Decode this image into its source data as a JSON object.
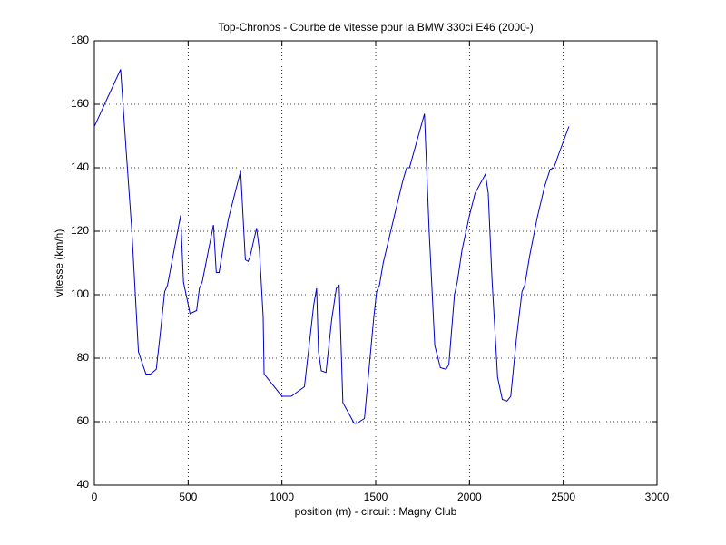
{
  "chart_data": {
    "type": "line",
    "title": "Top-Chronos - Courbe de vitesse pour la BMW 330ci E46 (2000-)",
    "x_label": "position (m) - circuit : Magny Club",
    "y_label": "vitesse (km/h)",
    "x": [
      0,
      140,
      170,
      200,
      235,
      275,
      300,
      330,
      350,
      375,
      390,
      460,
      475,
      500,
      510,
      545,
      560,
      575,
      635,
      650,
      665,
      690,
      715,
      780,
      805,
      820,
      830,
      865,
      880,
      900,
      905,
      1000,
      1050,
      1120,
      1170,
      1185,
      1195,
      1210,
      1235,
      1265,
      1290,
      1305,
      1325,
      1385,
      1400,
      1440,
      1490,
      1505,
      1520,
      1540,
      1600,
      1645,
      1665,
      1680,
      1760,
      1785,
      1815,
      1845,
      1875,
      1890,
      1920,
      1935,
      1960,
      2000,
      2030,
      2085,
      2100,
      2120,
      2150,
      2175,
      2200,
      2220,
      2250,
      2280,
      2295,
      2320,
      2360,
      2400,
      2430,
      2450,
      2480,
      2530
    ],
    "series": [
      {
        "name": "vitesse",
        "color": "#0000cc",
        "values": [
          153,
          171,
          145,
          120,
          82,
          75,
          75,
          76.5,
          87,
          101,
          103,
          125,
          104,
          97,
          94,
          95,
          102,
          104,
          122,
          107,
          107,
          116,
          124,
          139,
          111,
          110.5,
          112,
          121,
          114,
          93,
          75,
          68,
          68,
          71,
          97,
          102,
          82,
          76,
          75.5,
          92,
          102,
          103,
          66,
          59.5,
          59.5,
          61,
          93,
          101,
          103,
          110,
          125,
          136,
          140,
          140,
          157,
          120,
          84,
          77,
          76.5,
          78,
          100,
          104,
          114,
          125,
          132,
          138,
          132,
          105,
          74,
          67,
          66.5,
          68,
          86,
          101,
          103,
          112,
          124,
          134,
          139.5,
          140,
          145,
          153
        ]
      }
    ],
    "xlim": [
      0,
      3000
    ],
    "ylim": [
      40,
      180
    ],
    "xticks": [
      0,
      500,
      1000,
      1500,
      2000,
      2500,
      3000
    ],
    "yticks": [
      40,
      60,
      80,
      100,
      120,
      140,
      160,
      180
    ],
    "grid": true
  }
}
